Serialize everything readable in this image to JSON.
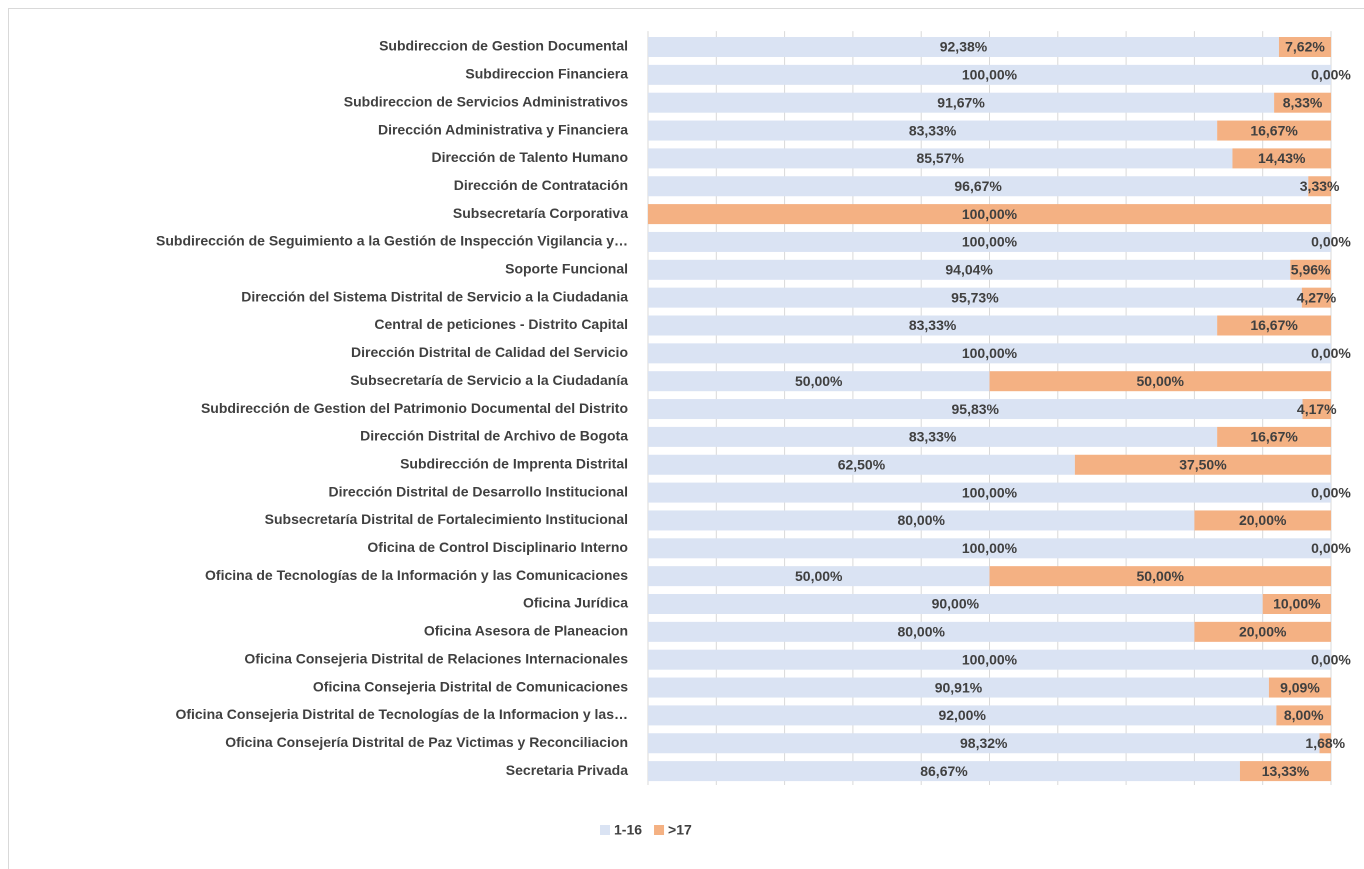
{
  "chart_data": {
    "type": "stacked-bar-horizontal",
    "categories": [
      "Subdireccion de Gestion Documental",
      "Subdireccion Financiera",
      "Subdireccion de Servicios Administrativos",
      "Dirección Administrativa y Financiera",
      "Dirección de Talento Humano",
      "Dirección de Contratación",
      "Subsecretaría Corporativa",
      "Subdirección de Seguimiento a la Gestión de Inspección Vigilancia y…",
      "Soporte Funcional",
      "Dirección del Sistema Distrital de Servicio a la Ciudadania",
      "Central de peticiones - Distrito Capital",
      "Dirección Distrital de Calidad del Servicio",
      "Subsecretaría de Servicio a la Ciudadanía",
      "Subdirección de Gestion del Patrimonio Documental del Distrito",
      "Dirección Distrital de Archivo de Bogota",
      "Subdirección de Imprenta Distrital",
      "Dirección Distrital de Desarrollo Institucional",
      "Subsecretaría Distrital de Fortalecimiento Institucional",
      "Oficina de Control Disciplinario Interno",
      "Oficina de Tecnologías de la Información y las Comunicaciones",
      "Oficina Jurídica",
      "Oficina Asesora de Planeacion",
      "Oficina Consejeria Distrital de Relaciones Internacionales",
      "Oficina Consejeria Distrital de Comunicaciones",
      "Oficina Consejeria Distrital de Tecnologías de la Informacion y las…",
      "Oficina Consejería Distrital de Paz Victimas y Reconciliacion",
      "Secretaria Privada"
    ],
    "series": [
      {
        "name": "1-16",
        "color": "#dae3f3",
        "values": [
          92.38,
          100,
          91.67,
          83.33,
          85.57,
          96.67,
          0,
          100,
          94.04,
          95.73,
          83.33,
          100,
          50,
          95.83,
          83.33,
          62.5,
          100,
          80,
          100,
          50,
          90,
          80,
          100,
          90.91,
          92,
          98.32,
          86.67
        ],
        "value_labels": [
          "92,38%",
          "100,00%",
          "91,67%",
          "83,33%",
          "85,57%",
          "96,67%",
          null,
          "100,00%",
          "94,04%",
          "95,73%",
          "83,33%",
          "100,00%",
          "50,00%",
          "95,83%",
          "83,33%",
          "62,50%",
          "100,00%",
          "80,00%",
          "100,00%",
          "50,00%",
          "90,00%",
          "80,00%",
          "100,00%",
          "90,91%",
          "92,00%",
          "98,32%",
          "86,67%"
        ]
      },
      {
        "name": ">17",
        "color": "#f4b183",
        "values": [
          7.62,
          0,
          8.33,
          16.67,
          14.43,
          3.33,
          100,
          0,
          5.96,
          4.27,
          16.67,
          0,
          50,
          4.17,
          16.67,
          37.5,
          0,
          20,
          0,
          50,
          10,
          20,
          0,
          9.09,
          8,
          1.68,
          13.33
        ],
        "value_labels": [
          "7,62%",
          "0,00%",
          "8,33%",
          "16,67%",
          "14,43%",
          "3,33%",
          "100,00%",
          "0,00%",
          "5,96%",
          "4,27%",
          "16,67%",
          "0,00%",
          "50,00%",
          "4,17%",
          "16,67%",
          "37,50%",
          "0,00%",
          "20,00%",
          "0,00%",
          "50,00%",
          "10,00%",
          "20,00%",
          "0,00%",
          "9,09%",
          "8,00%",
          "1,68%",
          "13,33%"
        ]
      }
    ],
    "xlim": [
      0,
      100
    ],
    "xticks": [
      0,
      10,
      20,
      30,
      40,
      50,
      60,
      70,
      80,
      90,
      100
    ],
    "grid": true,
    "legend": "bottom"
  }
}
